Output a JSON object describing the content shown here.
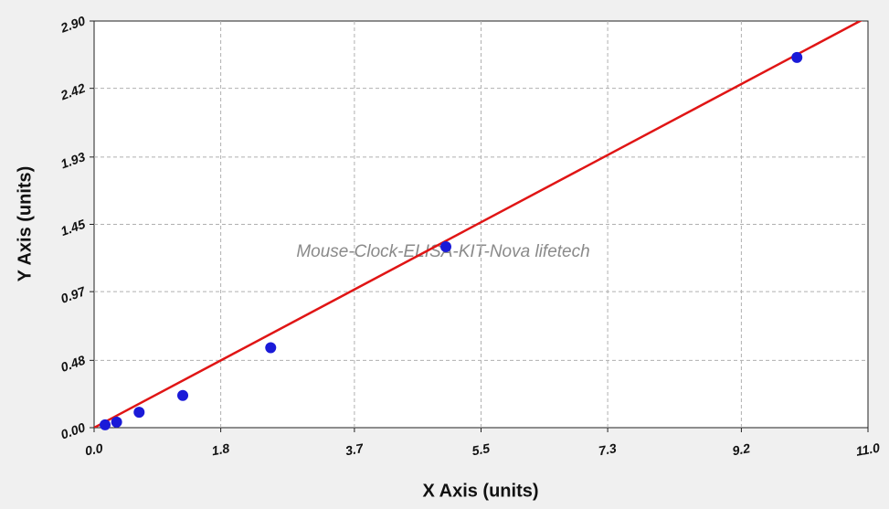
{
  "chart_data": {
    "type": "scatter",
    "x_label": "X Axis (units)",
    "y_label": "Y Axis (units)",
    "watermark": "Mouse-Clock-ELISA-KIT-Nova lifetech",
    "xlim": [
      0,
      11
    ],
    "ylim": [
      0,
      2.9
    ],
    "xticks": [
      {
        "value": 0,
        "label": "0.0"
      },
      1.8,
      3.7,
      5.5,
      7.3,
      9.2,
      {
        "value": 11,
        "label": "11.0"
      }
    ],
    "yticks": [
      {
        "value": 0,
        "label": "0.00"
      },
      0.48,
      0.97,
      1.45,
      1.93,
      2.42,
      {
        "value": 2.9,
        "label": "2.90"
      }
    ],
    "grid": true,
    "series": [
      {
        "color": "#1a1ad8",
        "x": [
          0.156,
          0.32,
          0.64,
          1.26,
          2.51,
          5.0,
          9.99
        ],
        "values": [
          0.02,
          0.04,
          0.11,
          0.23,
          0.57,
          1.29,
          2.64
        ]
      }
    ],
    "fit": {
      "color": "#e01515",
      "x": [
        0,
        11
      ],
      "values": [
        0,
        2.93
      ]
    }
  }
}
